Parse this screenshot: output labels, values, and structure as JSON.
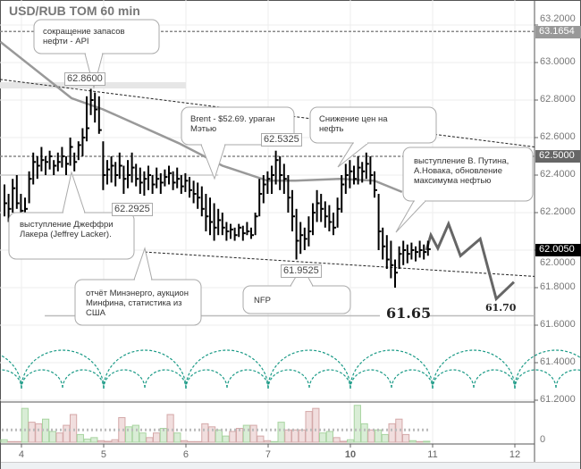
{
  "title": "USD/RUB TOM 60 min",
  "chart_data": {
    "type": "ohlc-bar",
    "title": "USD/RUB TOM 60 min",
    "ylim": [
      61.16,
      63.33
    ],
    "y_ticks": [
      "63.2000",
      "63.0000",
      "62.8000",
      "62.6000",
      "62.4000",
      "62.2000",
      "62.0000",
      "61.8000",
      "61.6000",
      "61.4000",
      "61.2000"
    ],
    "x_ticks": [
      {
        "label": "4",
        "bar": 4.13
      },
      {
        "label": "5",
        "bar": 24.13
      },
      {
        "label": "6",
        "bar": 44.13
      },
      {
        "label": "7",
        "bar": 64.13
      },
      {
        "label": "10",
        "bar": 84.13,
        "bold": true
      },
      {
        "label": "11",
        "bar": 104.13
      },
      {
        "label": "12",
        "bar": 124.13
      }
    ],
    "bars_hlc": [
      [
        62.35,
        62.18,
        62.25
      ],
      [
        62.3,
        62.15,
        62.22
      ],
      [
        62.38,
        62.2,
        62.33
      ],
      [
        62.4,
        62.22,
        62.25
      ],
      [
        62.3,
        62.18,
        62.21
      ],
      [
        62.28,
        62.17,
        62.22
      ],
      [
        62.42,
        62.25,
        62.38
      ],
      [
        62.52,
        62.35,
        62.47
      ],
      [
        62.5,
        62.38,
        62.45
      ],
      [
        62.55,
        62.42,
        62.48
      ],
      [
        62.5,
        62.4,
        62.47
      ],
      [
        62.53,
        62.43,
        62.5
      ],
      [
        62.48,
        62.4,
        62.45
      ],
      [
        62.52,
        62.42,
        62.47
      ],
      [
        62.55,
        62.44,
        62.5
      ],
      [
        62.5,
        62.4,
        62.46
      ],
      [
        62.6,
        62.45,
        62.55
      ],
      [
        62.52,
        62.42,
        62.47
      ],
      [
        62.58,
        62.48,
        62.56
      ],
      [
        62.65,
        62.5,
        62.6
      ],
      [
        62.82,
        62.58,
        62.65
      ],
      [
        62.86,
        62.72,
        62.8
      ],
      [
        62.84,
        62.68,
        62.75
      ],
      [
        62.82,
        62.62,
        62.64
      ],
      [
        62.58,
        62.32,
        62.4
      ],
      [
        62.48,
        62.35,
        62.43
      ],
      [
        62.5,
        62.36,
        62.45
      ],
      [
        62.47,
        62.34,
        62.4
      ],
      [
        62.52,
        62.38,
        62.45
      ],
      [
        62.45,
        62.3,
        62.38
      ],
      [
        62.48,
        62.33,
        62.4
      ],
      [
        62.52,
        62.36,
        62.44
      ],
      [
        62.46,
        62.34,
        62.38
      ],
      [
        62.44,
        62.3,
        62.36
      ],
      [
        62.42,
        62.29,
        62.38
      ],
      [
        62.45,
        62.32,
        62.4
      ],
      [
        62.4,
        62.3,
        62.35
      ],
      [
        62.44,
        62.33,
        62.38
      ],
      [
        62.41,
        62.3,
        62.36
      ],
      [
        62.43,
        62.34,
        62.39
      ],
      [
        62.45,
        62.35,
        62.41
      ],
      [
        62.42,
        62.32,
        62.36
      ],
      [
        62.44,
        62.33,
        62.38
      ],
      [
        62.4,
        62.3,
        62.34
      ],
      [
        62.41,
        62.31,
        62.37
      ],
      [
        62.39,
        62.28,
        62.32
      ],
      [
        62.37,
        62.25,
        62.3
      ],
      [
        62.36,
        62.22,
        62.28
      ],
      [
        62.34,
        62.18,
        62.22
      ],
      [
        62.3,
        62.1,
        62.18
      ],
      [
        62.28,
        62.08,
        62.15
      ],
      [
        62.25,
        62.05,
        62.12
      ],
      [
        62.22,
        62.08,
        62.16
      ],
      [
        62.2,
        62.08,
        62.12
      ],
      [
        62.15,
        62.05,
        62.1
      ],
      [
        62.14,
        62.06,
        62.11
      ],
      [
        62.12,
        62.05,
        62.08
      ],
      [
        62.14,
        62.07,
        62.12
      ],
      [
        62.13,
        62.05,
        62.09
      ],
      [
        62.15,
        62.08,
        62.1
      ],
      [
        62.12,
        62.06,
        62.08
      ],
      [
        62.2,
        62.08,
        62.18
      ],
      [
        62.38,
        62.18,
        62.3
      ],
      [
        62.4,
        62.25,
        62.35
      ],
      [
        62.42,
        62.3,
        62.38
      ],
      [
        62.45,
        62.3,
        62.4
      ],
      [
        62.53,
        62.35,
        62.48
      ],
      [
        62.5,
        62.32,
        62.4
      ],
      [
        62.46,
        62.3,
        62.38
      ],
      [
        62.4,
        62.2,
        62.28
      ],
      [
        62.32,
        62.1,
        62.18
      ],
      [
        62.22,
        61.95,
        62.05
      ],
      [
        62.15,
        61.98,
        62.08
      ],
      [
        62.12,
        62.0,
        62.06
      ],
      [
        62.18,
        62.02,
        62.1
      ],
      [
        62.25,
        62.08,
        62.2
      ],
      [
        62.32,
        62.15,
        62.25
      ],
      [
        62.3,
        62.15,
        62.22
      ],
      [
        62.26,
        62.12,
        62.18
      ],
      [
        62.24,
        62.1,
        62.15
      ],
      [
        62.2,
        62.08,
        62.12
      ],
      [
        62.28,
        62.12,
        62.22
      ],
      [
        62.4,
        62.2,
        62.35
      ],
      [
        62.46,
        62.3,
        62.4
      ],
      [
        62.48,
        62.33,
        62.42
      ],
      [
        62.45,
        62.35,
        62.38
      ],
      [
        62.5,
        62.35,
        62.44
      ],
      [
        62.47,
        62.36,
        62.42
      ],
      [
        62.52,
        62.38,
        62.46
      ],
      [
        62.5,
        62.35,
        62.4
      ],
      [
        62.42,
        62.28,
        62.32
      ],
      [
        62.3,
        62.0,
        62.1
      ],
      [
        62.12,
        61.95,
        62.02
      ],
      [
        62.08,
        61.9,
        61.95
      ],
      [
        62.05,
        61.85,
        61.92
      ],
      [
        61.95,
        61.8,
        61.88
      ],
      [
        62.02,
        61.9,
        61.98
      ],
      [
        62.05,
        61.92,
        62.0
      ],
      [
        62.03,
        61.93,
        61.98
      ],
      [
        62.04,
        61.95,
        62.0
      ],
      [
        62.02,
        61.94,
        61.99
      ],
      [
        62.05,
        61.96,
        62.0
      ],
      [
        62.03,
        61.95,
        61.99
      ],
      [
        62.05,
        61.97,
        62.005
      ]
    ],
    "moving_average": [
      [
        -1,
        63.11
      ],
      [
        16.3,
        62.81
      ],
      [
        24,
        62.75
      ],
      [
        42.4,
        62.57
      ],
      [
        53,
        62.45
      ],
      [
        64,
        62.37
      ],
      [
        70.7,
        62.37
      ],
      [
        81.5,
        62.38
      ],
      [
        90,
        62.37
      ],
      [
        96.7,
        62.31
      ]
    ],
    "forecast": [
      [
        102.6,
        62.0
      ],
      [
        103.7,
        62.08
      ],
      [
        105.4,
        62.01
      ],
      [
        108,
        62.14
      ],
      [
        110.9,
        61.97
      ],
      [
        115.7,
        62.06
      ],
      [
        119.6,
        61.74
      ],
      [
        123.9,
        61.83
      ]
    ],
    "trendlines": [
      {
        "from": [
          -1.1,
          62.91
        ],
        "to": [
          128.9,
          62.55
        ]
      },
      {
        "from": [
          34.1,
          61.99
        ],
        "to": [
          128.9,
          61.86
        ]
      }
    ],
    "support_line": {
      "from": [
        -1.1,
        62.4
      ],
      "to": [
        52,
        62.4
      ]
    },
    "target_line": {
      "value": 61.65,
      "label": "61.65",
      "from": 9.8,
      "to": 128.9
    },
    "forecast_target_label": "61.70",
    "levels": [
      {
        "value": 63.1654,
        "label": "63.1654",
        "color": "#999999"
      },
      {
        "value": 62.5,
        "label": "62.5000",
        "color": "#666666"
      }
    ],
    "last_price": {
      "value": 62.005,
      "label": "62.0050",
      "color": "#000000"
    },
    "price_labels": [
      {
        "label": "62.8600"
      },
      {
        "label": "62.5325"
      },
      {
        "label": "62.2925"
      },
      {
        "label": "61.9525"
      }
    ],
    "volume": {
      "zero_label": "0",
      "max": 125,
      "average": 40,
      "values": [
        8,
        2,
        2,
        110,
        65,
        60,
        75,
        35,
        30,
        55,
        90,
        25,
        10,
        15,
        5,
        3,
        8,
        80,
        50,
        55,
        30,
        15,
        30,
        45,
        90,
        30,
        5,
        2,
        2,
        60,
        50,
        40,
        20,
        35,
        45,
        55,
        55,
        20,
        5,
        2,
        65,
        40,
        40,
        40,
        100,
        110,
        30,
        35,
        15,
        3,
        8,
        120,
        60,
        40,
        40,
        25,
        60,
        75,
        25,
        5,
        2,
        3
      ],
      "up": [
        1,
        0,
        0,
        1,
        0,
        0,
        1,
        1,
        0,
        0,
        0,
        1,
        1,
        1,
        0,
        0,
        0,
        0,
        1,
        1,
        1,
        0,
        0,
        1,
        0,
        1,
        0,
        0,
        0,
        0,
        0,
        1,
        1,
        0,
        0,
        1,
        0,
        0,
        0,
        1,
        1,
        0,
        0,
        0,
        0,
        0,
        1,
        1,
        0,
        0,
        1,
        1,
        1,
        0,
        1,
        1,
        0,
        0,
        0,
        1,
        0,
        1
      ]
    },
    "colors": {
      "bar": "#000000",
      "ma": "#999999",
      "forecast": "#666666",
      "cycles": "#1a9a86",
      "vol_up": "#d9edd6",
      "vol_up_border": "#a8d4a0",
      "vol_down": "#f1dede",
      "vol_down_border": "#d4a8a8"
    }
  },
  "annotations": {
    "api": "сокращение запасов нефти - API",
    "brent": "Brent - $52.69. ураган Мэтью",
    "oil_drop": "Снижение цен на нефть",
    "putin": "выступление В. Путина, А.Новака, обновление максимума нефтью",
    "lacker": "выступление Джеффри Лакера (Jeffrey Lacker).",
    "minenergo": "отчёт Минэнерго, аукцион Минфина, статистика из США",
    "nfp": "NFP"
  }
}
